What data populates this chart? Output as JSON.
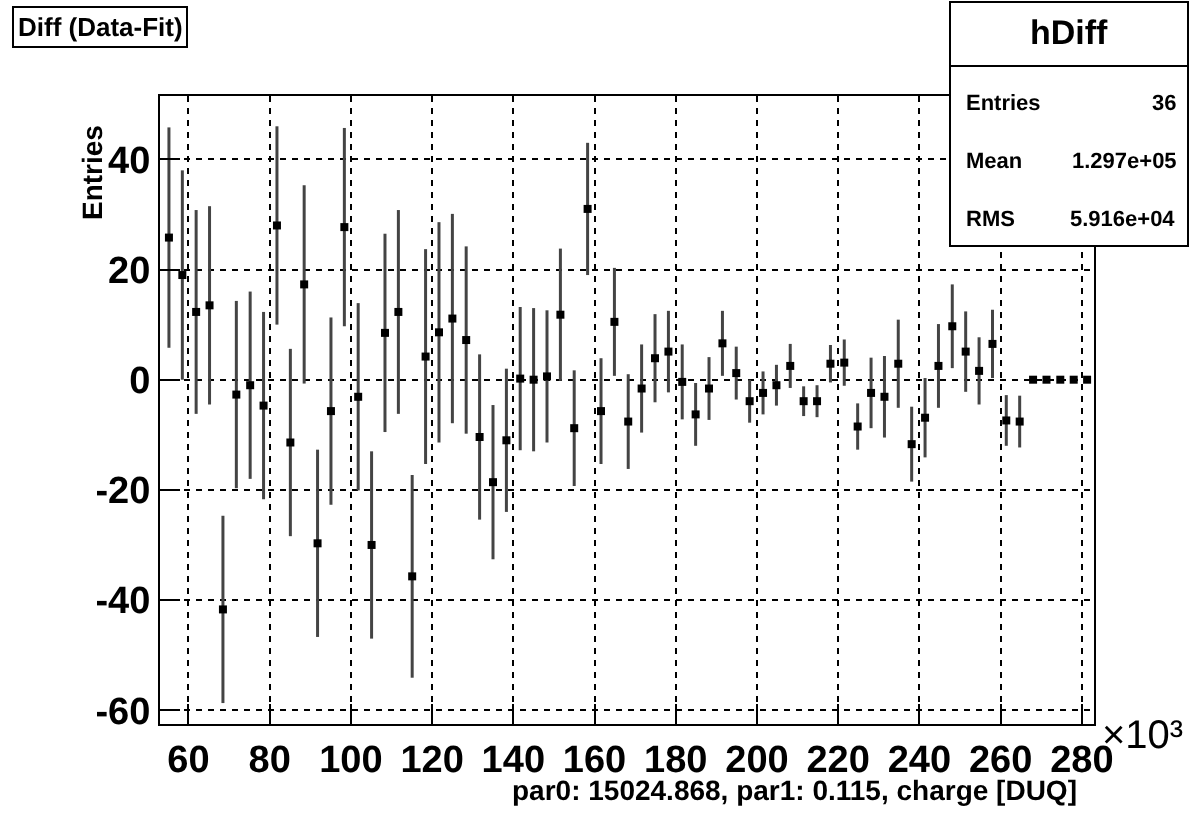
{
  "chart_data": {
    "type": "scatter",
    "title": "Diff (Data-Fit)",
    "ylabel": "Entries",
    "xlabel": "par0: 15024.868, par1: 0.115, charge [DUQ]",
    "annotations": [
      "×10³",
      "hDiff",
      "Entries",
      "36",
      "Mean",
      "1.297e+05",
      "RMS",
      "5.916e+04"
    ],
    "x": [
      55.2,
      58.5,
      61.9,
      65.2,
      68.5,
      71.8,
      75.2,
      78.5,
      81.8,
      85.1,
      88.5,
      91.8,
      95.1,
      98.4,
      101.8,
      105.1,
      108.4,
      111.7,
      115.1,
      118.4,
      121.7,
      125.0,
      128.4,
      131.7,
      135.0,
      138.3,
      141.7,
      145.0,
      148.3,
      151.6,
      155.0,
      158.3,
      161.6,
      164.9,
      168.3,
      171.6,
      174.9,
      178.2,
      181.6,
      184.9,
      188.2,
      191.5,
      194.9,
      198.2,
      201.5,
      204.8,
      208.2,
      211.5,
      214.8,
      218.1,
      221.5,
      224.8,
      228.1,
      231.4,
      234.8,
      238.1,
      241.4,
      244.7,
      248.1,
      251.4,
      254.7,
      258.0,
      261.4,
      264.7,
      268.0,
      271.3,
      274.7,
      278.0,
      281.3
    ],
    "series": [
      {
        "color": "#000000",
        "values": [
          25.8,
          19,
          12.3,
          13.5,
          -41.7,
          -2.7,
          -1,
          -4.7,
          28,
          -11.4,
          17.3,
          -29.7,
          -5.7,
          27.7,
          -3.1,
          -30,
          8.5,
          12.3,
          -35.7,
          4.2,
          8.6,
          11.1,
          7.2,
          -10.4,
          -18.6,
          -11,
          0.2,
          0,
          0.6,
          11.8,
          -8.8,
          31,
          -5.7,
          10.5,
          -7.6,
          -1.6,
          3.9,
          5.1,
          -0.4,
          -6.3,
          -1.6,
          6.6,
          1.2,
          -3.9,
          -2.4,
          -1,
          2.5,
          -3.9,
          -3.9,
          2.9,
          3.1,
          -8.5,
          -2.4,
          -3.1,
          2.9,
          -11.7,
          -6.9,
          2.5,
          9.7,
          5.1,
          1.6,
          6.5,
          -7.4,
          -7.6,
          0,
          0,
          0,
          0,
          0
        ],
        "errors": [
          20,
          19,
          18.5,
          18,
          17,
          17,
          17,
          17,
          18,
          17,
          18,
          17,
          17,
          18,
          17,
          17,
          18,
          18.5,
          18.4,
          19.5,
          20,
          19,
          17,
          15,
          14,
          13,
          13,
          13,
          12,
          12,
          10.5,
          12,
          9.6,
          9.8,
          8.6,
          8,
          8,
          7.4,
          6.8,
          5.7,
          5.7,
          5.9,
          4.8,
          3.9,
          3.9,
          3.7,
          4,
          2.7,
          2.9,
          3.4,
          4.2,
          4.2,
          6.4,
          7.4,
          8,
          6.8,
          7.2,
          7.6,
          7.6,
          7.3,
          6.1,
          6.2,
          4.6,
          4.7,
          null,
          null,
          null,
          null,
          null
        ]
      }
    ],
    "xlim": [
      53,
      283
    ],
    "ylim": [
      -62.5,
      51.5
    ],
    "xticks": [
      60,
      80,
      100,
      120,
      140,
      160,
      180,
      200,
      220,
      240,
      260,
      280
    ],
    "yticks": [
      -60,
      -40,
      -20,
      0,
      20,
      40
    ],
    "grid": true,
    "marker": "square"
  }
}
